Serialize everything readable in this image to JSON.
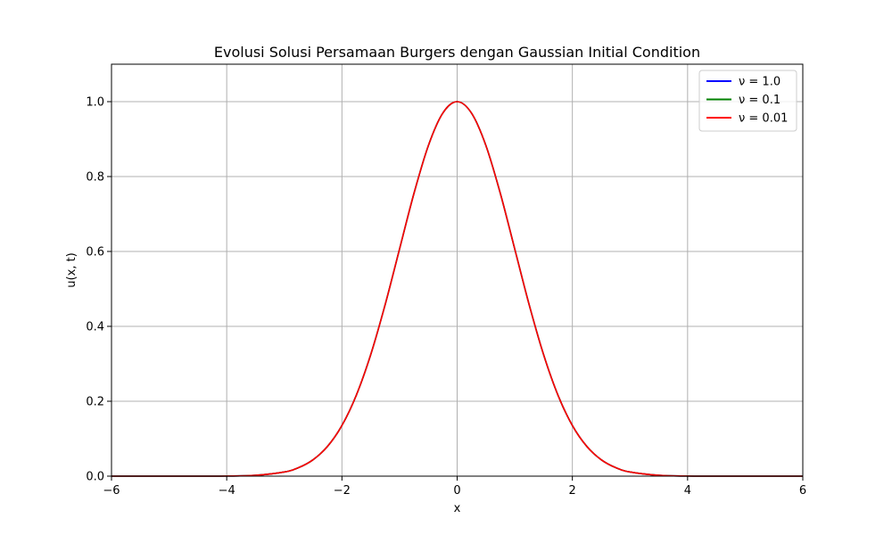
{
  "chart_data": {
    "type": "line",
    "title": "Evolusi Solusi Persamaan Burgers dengan Gaussian Initial Condition",
    "xlabel": "x",
    "ylabel": "u(x, t)",
    "xlim": [
      -6,
      6
    ],
    "ylim": [
      0,
      1.1
    ],
    "xticks": [
      -6,
      -4,
      -2,
      0,
      2,
      4,
      6
    ],
    "xtick_labels": [
      "−6",
      "−4",
      "−2",
      "0",
      "2",
      "4",
      "6"
    ],
    "yticks": [
      0.0,
      0.2,
      0.4,
      0.6,
      0.8,
      1.0
    ],
    "ytick_labels": [
      "0.0",
      "0.2",
      "0.4",
      "0.6",
      "0.8",
      "1.0"
    ],
    "grid": true,
    "legend_position": "top-right",
    "x": [
      -6,
      -5.5,
      -5,
      -4.5,
      -4,
      -3.5,
      -3,
      -2.75,
      -2.5,
      -2.25,
      -2,
      -1.75,
      -1.5,
      -1.25,
      -1,
      -0.75,
      -0.5,
      -0.25,
      0,
      0.25,
      0.5,
      0.75,
      1,
      1.25,
      1.5,
      1.75,
      2,
      2.25,
      2.5,
      2.75,
      3,
      3.5,
      4,
      4.5,
      5,
      5.5,
      6
    ],
    "series": [
      {
        "name": "ν = 1.0",
        "color": "#0000ff",
        "values": [
          0.0,
          0.0,
          0.0,
          0.0,
          0.0003,
          0.0022,
          0.0111,
          0.0228,
          0.0439,
          0.0796,
          0.1353,
          0.2163,
          0.3247,
          0.4578,
          0.6065,
          0.7548,
          0.8825,
          0.9692,
          1.0,
          0.9692,
          0.8825,
          0.7548,
          0.6065,
          0.4578,
          0.3247,
          0.2163,
          0.1353,
          0.0796,
          0.0439,
          0.0228,
          0.0111,
          0.0022,
          0.0003,
          0.0,
          0.0,
          0.0,
          0.0
        ]
      },
      {
        "name": "ν = 0.1",
        "color": "#008000",
        "values": [
          0.0,
          0.0,
          0.0,
          0.0,
          0.0003,
          0.0022,
          0.0111,
          0.0228,
          0.0439,
          0.0796,
          0.1353,
          0.2163,
          0.3247,
          0.4578,
          0.6065,
          0.7548,
          0.8825,
          0.9692,
          1.0,
          0.9692,
          0.8825,
          0.7548,
          0.6065,
          0.4578,
          0.3247,
          0.2163,
          0.1353,
          0.0796,
          0.0439,
          0.0228,
          0.0111,
          0.0022,
          0.0003,
          0.0,
          0.0,
          0.0,
          0.0
        ]
      },
      {
        "name": "ν = 0.01",
        "color": "#ff0000",
        "values": [
          0.0,
          0.0,
          0.0,
          0.0,
          0.0003,
          0.0022,
          0.0111,
          0.0228,
          0.0439,
          0.0796,
          0.1353,
          0.2163,
          0.3247,
          0.4578,
          0.6065,
          0.7548,
          0.8825,
          0.9692,
          1.0,
          0.9692,
          0.8825,
          0.7548,
          0.6065,
          0.4578,
          0.3247,
          0.2163,
          0.1353,
          0.0796,
          0.0439,
          0.0228,
          0.0111,
          0.0022,
          0.0003,
          0.0,
          0.0,
          0.0,
          0.0
        ]
      }
    ]
  }
}
